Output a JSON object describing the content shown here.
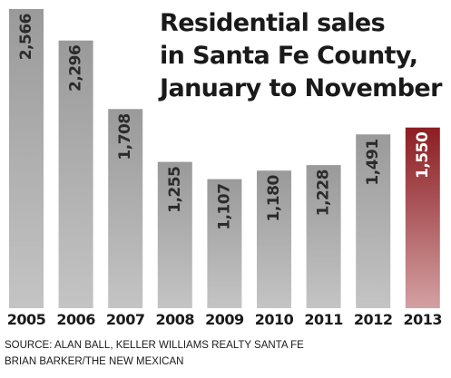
{
  "chart_data": {
    "type": "bar",
    "title_lines": [
      "Residential sales",
      "in Santa Fe County,",
      "January to November"
    ],
    "categories": [
      "2005",
      "2006",
      "2007",
      "2008",
      "2009",
      "2010",
      "2011",
      "2012",
      "2013"
    ],
    "values": [
      2566,
      2296,
      1708,
      1255,
      1107,
      1180,
      1228,
      1491,
      1550
    ],
    "value_labels": [
      "2,566",
      "2,296",
      "1,708",
      "1,255",
      "1,107",
      "1,180",
      "1,228",
      "1,491",
      "1,550"
    ],
    "highlight_category": "2013",
    "colors": {
      "bar_top": "#9a9a9a",
      "bar_bottom": "#c4c4c4",
      "highlight_top": "#8c1d22",
      "highlight_bottom": "#d3a0a2",
      "label_dark": "#2b2b2b",
      "label_highlight": "#ffffff"
    },
    "ylim": [
      0,
      2566
    ],
    "grid": false,
    "legend": "none"
  },
  "footer": {
    "source": "SOURCE: ALAN BALL, KELLER WILLIAMS REALTY SANTA FE",
    "credit": "BRIAN BARKER/THE NEW MEXICAN"
  }
}
